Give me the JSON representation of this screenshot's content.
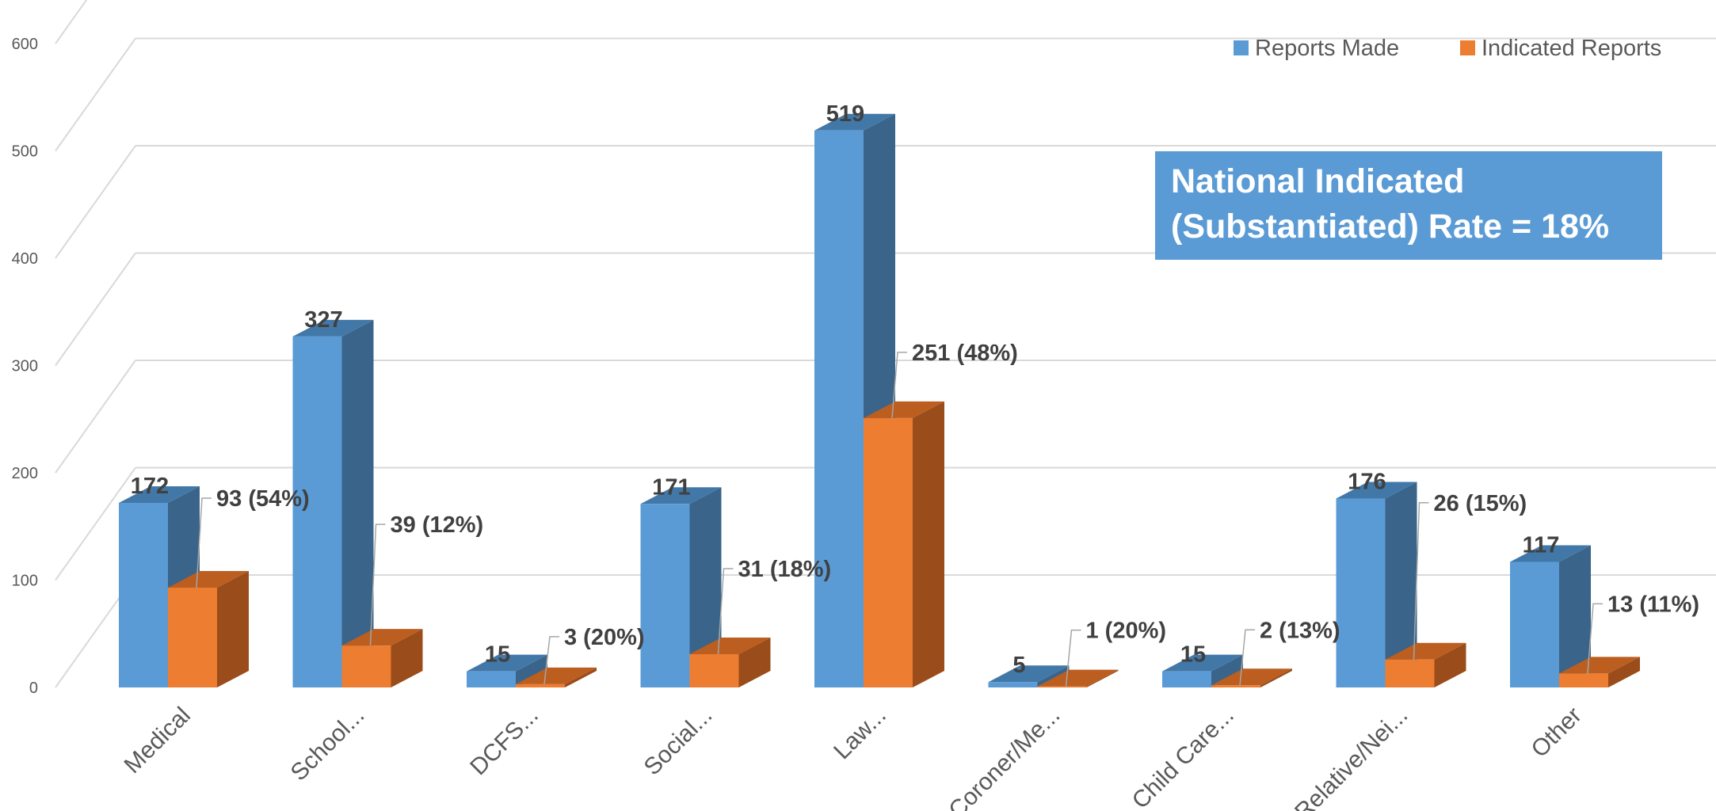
{
  "chart_data": {
    "type": "bar",
    "categories": [
      "Medical",
      "School...",
      "DCFS...",
      "Social...",
      "Law...",
      "Coroner/Me...",
      "Child Care...",
      "Relative/Nei...",
      "Other"
    ],
    "series": [
      {
        "name": "Reports Made",
        "values": [
          172,
          327,
          15,
          171,
          519,
          5,
          15,
          176,
          117
        ]
      },
      {
        "name": "Indicated Reports",
        "values": [
          93,
          39,
          3,
          31,
          251,
          1,
          2,
          26,
          13
        ]
      }
    ],
    "data_labels": {
      "reports_made": [
        "172",
        "327",
        "15",
        "171",
        "519",
        "5",
        "15",
        "176",
        "117"
      ],
      "indicated_reports": [
        "93 (54%)",
        "39 (12%)",
        "3 (20%)",
        "31 (18%)",
        "251 (48%)",
        "1 (20%)",
        "2 (13%)",
        "26 (15%)",
        "13 (11%)"
      ]
    },
    "y_ticks": [
      0,
      100,
      200,
      300,
      400,
      500,
      600
    ],
    "ylim": [
      0,
      600
    ],
    "legend_position": "top-right",
    "grid": true,
    "annotation_box": {
      "lines": [
        "National Indicated",
        "(Substantiated) Rate = 18%"
      ],
      "color": "#5B9BD5"
    },
    "colors": {
      "reports_made": "#5B9BD5",
      "reports_made_side": "#3A6489",
      "reports_made_top": "#4278A8",
      "indicated_reports": "#ED7D31",
      "indicated_reports_side": "#9A4C1A",
      "indicated_reports_top": "#BB5E20"
    }
  }
}
